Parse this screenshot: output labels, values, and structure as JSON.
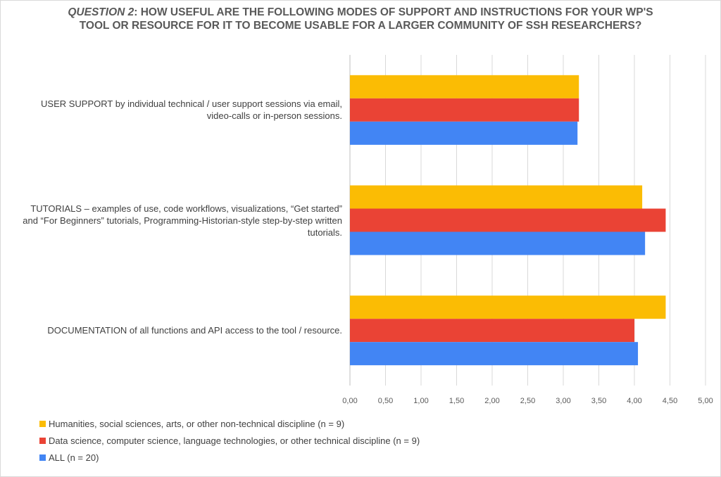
{
  "chart_data": {
    "type": "bar",
    "orientation": "horizontal",
    "title_prefix": "QUESTION 2",
    "title_rest": ": HOW USEFUL ARE THE FOLLOWING MODES OF SUPPORT AND INSTRUCTIONS FOR YOUR WP'S",
    "title_line2": "TOOL OR RESOURCE FOR IT TO BECOME USABLE FOR A LARGER COMMUNITY OF SSH RESEARCHERS?",
    "categories": [
      [
        "USER SUPPORT by individual technical / user support sessions via email,",
        "video-calls or in-person sessions."
      ],
      [
        "TUTORIALS – examples of use, code workflows, visualizations, “Get started”",
        "and “For Beginners” tutorials, Programming-Historian-style step-by-step written",
        "tutorials."
      ],
      [
        "DOCUMENTATION of all functions and API access to the tool / resource."
      ]
    ],
    "series": [
      {
        "name": "Humanities, social sciences, arts, or other non-technical discipline (n = 9)",
        "color": "#fbbc04",
        "values": [
          3.22,
          4.11,
          4.44
        ]
      },
      {
        "name": "Data science, computer science, language technologies, or other technical discipline (n = 9)",
        "color": "#ea4335",
        "values": [
          3.22,
          4.44,
          4.0
        ]
      },
      {
        "name": "ALL (n = 20)",
        "color": "#4285f4",
        "values": [
          3.2,
          4.15,
          4.05
        ]
      }
    ],
    "xlim": [
      0,
      5
    ],
    "xticks": [
      "0,00",
      "0,50",
      "1,00",
      "1,50",
      "2,00",
      "2,50",
      "3,00",
      "3,50",
      "4,00",
      "4,50",
      "5,00"
    ],
    "grid": true,
    "legend_position": "bottom-left"
  }
}
